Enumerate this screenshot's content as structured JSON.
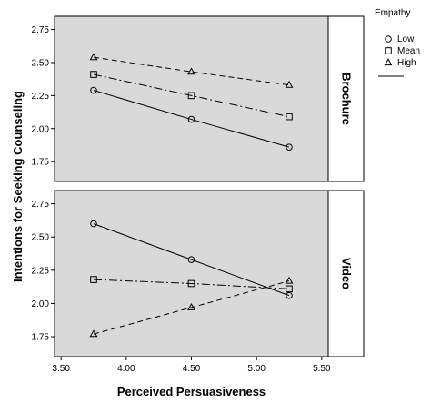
{
  "chart_data": [
    {
      "type": "line",
      "panel": "Brochure",
      "x": [
        3.75,
        4.5,
        5.25
      ],
      "series": [
        {
          "name": "Low",
          "values": [
            2.29,
            2.07,
            1.86
          ]
        },
        {
          "name": "Mean",
          "values": [
            2.41,
            2.25,
            2.09
          ]
        },
        {
          "name": "High",
          "values": [
            2.54,
            2.43,
            2.33
          ]
        }
      ],
      "ylim": [
        1.6,
        2.85
      ],
      "yticks": [
        "1.75",
        "2.00",
        "2.25",
        "2.50",
        "2.75"
      ]
    },
    {
      "type": "line",
      "panel": "Video",
      "x": [
        3.75,
        4.5,
        5.25
      ],
      "series": [
        {
          "name": "Low",
          "values": [
            2.6,
            2.33,
            2.06
          ]
        },
        {
          "name": "Mean",
          "values": [
            2.18,
            2.15,
            2.11
          ]
        },
        {
          "name": "High",
          "values": [
            1.77,
            1.97,
            2.17
          ]
        }
      ],
      "ylim": [
        1.6,
        2.85
      ],
      "yticks": [
        "1.75",
        "2.00",
        "2.25",
        "2.50",
        "2.75"
      ]
    }
  ],
  "shared": {
    "xlabel": "Perceived Persuasiveness",
    "ylabel": "Intentions for Seeking Counseling",
    "xlim": [
      3.45,
      5.55
    ],
    "xticks": [
      "3.50",
      "4.00",
      "4.50",
      "5.00",
      "5.50"
    ],
    "panel_background": "#d9d9d9",
    "line_color": "#000000"
  },
  "legend": {
    "title": "Empathy",
    "placement": "top-right",
    "items": [
      {
        "label": "Low",
        "marker": "circle-icon"
      },
      {
        "label": "Mean",
        "marker": "square-icon"
      },
      {
        "label": "High",
        "marker": "triangle-icon"
      }
    ]
  }
}
